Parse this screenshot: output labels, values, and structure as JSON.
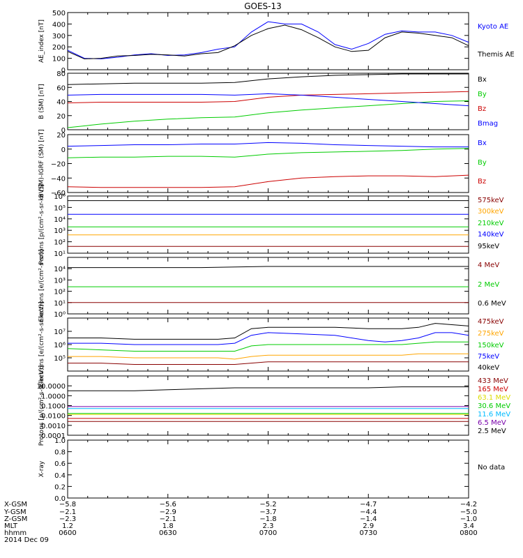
{
  "title": "GOES-13",
  "colors": {
    "black": "#000000",
    "blue": "#0000ff",
    "green": "#00cc00",
    "red": "#cc0000",
    "orange": "#ffa500",
    "purple": "#7700aa",
    "cyan": "#00bbff",
    "yellow": "#dddd00",
    "darkred": "#880000"
  },
  "chart_data": [
    {
      "type": "line",
      "name": "ae",
      "ylabel": "AE_index [nT]",
      "ylim": [
        0,
        500
      ],
      "ticks": [
        {
          "v": 0,
          "label": "0"
        },
        {
          "v": 100,
          "label": "100"
        },
        {
          "v": 200,
          "label": "200"
        },
        {
          "v": 300,
          "label": "300"
        },
        {
          "v": 400,
          "label": "400"
        },
        {
          "v": 500,
          "label": "500"
        }
      ],
      "x": [
        0,
        5,
        10,
        15,
        20,
        25,
        30,
        35,
        40,
        45,
        50,
        55,
        60,
        65,
        70,
        75,
        80,
        85,
        90,
        95,
        100,
        105,
        110,
        115,
        120
      ],
      "series": [
        {
          "name": "Kyoto AE",
          "color": "#0000ff",
          "values": [
            170,
            100,
            95,
            110,
            130,
            140,
            125,
            130,
            150,
            180,
            200,
            330,
            420,
            400,
            400,
            330,
            220,
            180,
            230,
            310,
            340,
            330,
            330,
            300,
            240
          ]
        },
        {
          "name": "Themis AE",
          "color": "#000000",
          "values": [
            160,
            95,
            100,
            120,
            125,
            135,
            130,
            120,
            140,
            150,
            210,
            300,
            360,
            390,
            350,
            280,
            200,
            160,
            170,
            280,
            330,
            320,
            300,
            280,
            210
          ]
        }
      ],
      "legend": [
        "Kyoto AE",
        "Themis AE"
      ]
    },
    {
      "type": "line",
      "name": "bsm",
      "ylabel": "B (SM) [nT]",
      "ylim": [
        0,
        80
      ],
      "ticks": [
        {
          "v": 0,
          "label": "0"
        },
        {
          "v": 20,
          "label": "20"
        },
        {
          "v": 40,
          "label": "40"
        },
        {
          "v": 60,
          "label": "60"
        },
        {
          "v": 80,
          "label": "80"
        }
      ],
      "x": [
        0,
        10,
        20,
        30,
        40,
        50,
        60,
        70,
        80,
        90,
        100,
        110,
        120
      ],
      "series": [
        {
          "name": "Bx",
          "color": "#000000",
          "values": [
            64,
            65,
            66,
            66,
            66,
            67,
            72,
            75,
            77,
            78,
            79,
            79,
            79
          ]
        },
        {
          "name": "By",
          "color": "#00cc00",
          "values": [
            3,
            8,
            12,
            15,
            17,
            18,
            24,
            28,
            31,
            34,
            37,
            40,
            41
          ]
        },
        {
          "name": "Bz",
          "color": "#cc0000",
          "values": [
            38,
            39,
            39,
            39,
            39,
            40,
            46,
            49,
            50,
            51,
            52,
            53,
            54
          ]
        },
        {
          "name": "Bmag",
          "color": "#0000ff",
          "values": [
            49,
            50,
            50,
            50,
            50,
            49,
            51,
            49,
            46,
            43,
            40,
            37,
            34
          ]
        }
      ],
      "legend": [
        "Bx",
        "By",
        "Bz",
        "Bmag"
      ]
    },
    {
      "type": "line",
      "name": "bigrf",
      "ylabel": "B (SM)-IGRF (SM) [nT]",
      "ylim": [
        -60,
        20
      ],
      "ticks": [
        {
          "v": -60,
          "label": "−60"
        },
        {
          "v": -40,
          "label": "−40"
        },
        {
          "v": -20,
          "label": "−20"
        },
        {
          "v": 0,
          "label": "0"
        },
        {
          "v": 20,
          "label": "20"
        }
      ],
      "x": [
        0,
        10,
        20,
        30,
        40,
        50,
        60,
        70,
        80,
        90,
        100,
        110,
        120
      ],
      "series": [
        {
          "name": "Bx",
          "color": "#0000ff",
          "values": [
            4,
            5,
            6,
            6,
            7,
            7,
            9,
            8,
            6,
            5,
            4,
            3,
            3
          ]
        },
        {
          "name": "By",
          "color": "#00cc00",
          "values": [
            -12,
            -11,
            -11,
            -10,
            -10,
            -11,
            -7,
            -5,
            -4,
            -3,
            -2,
            0,
            1
          ]
        },
        {
          "name": "Bz",
          "color": "#cc0000",
          "values": [
            -52,
            -53,
            -53,
            -53,
            -53,
            -52,
            -45,
            -40,
            -38,
            -37,
            -37,
            -38,
            -36
          ]
        }
      ],
      "legend": [
        "Bx",
        "By",
        "Bz"
      ]
    },
    {
      "type": "line",
      "name": "protons",
      "ylabel": "Protons [p/(cm²-s-sr-keV)]",
      "ylim": [
        1,
        6
      ],
      "log": true,
      "ticks": [
        {
          "v": 1,
          "label": "10¹"
        },
        {
          "v": 2,
          "label": "10²"
        },
        {
          "v": 3,
          "label": "10³"
        },
        {
          "v": 4,
          "label": "10⁴"
        },
        {
          "v": 5,
          "label": "10⁵"
        },
        {
          "v": 6,
          "label": "10⁶"
        }
      ],
      "x": [
        0,
        20,
        40,
        60,
        80,
        100,
        120
      ],
      "series": [
        {
          "name": "575keV",
          "color": "#880000",
          "values": [
            1.6,
            1.6,
            1.6,
            1.6,
            1.6,
            1.6,
            1.6
          ]
        },
        {
          "name": "300keV",
          "color": "#ffa500",
          "values": [
            2.6,
            2.6,
            2.6,
            2.6,
            2.6,
            2.6,
            2.6
          ]
        },
        {
          "name": "210keV",
          "color": "#00cc00",
          "values": [
            3.3,
            3.3,
            3.3,
            3.3,
            3.3,
            3.3,
            3.3
          ]
        },
        {
          "name": "140keV",
          "color": "#0000ff",
          "values": [
            4.4,
            4.4,
            4.4,
            4.4,
            4.4,
            4.4,
            4.4
          ]
        },
        {
          "name": "95keV",
          "color": "#000000",
          "values": [
            5.6,
            5.6,
            5.6,
            5.6,
            5.6,
            5.6,
            5.6
          ]
        }
      ],
      "legend": [
        "575keV",
        "300keV",
        "210keV",
        "140keV",
        "95keV"
      ]
    },
    {
      "type": "line",
      "name": "electrons_mev",
      "ylabel": "Electrons [e/(cm²-s-sr)]",
      "ylim": [
        0,
        5
      ],
      "log": true,
      "ticks": [
        {
          "v": 0,
          "label": "10⁰"
        },
        {
          "v": 1,
          "label": "10¹"
        },
        {
          "v": 2,
          "label": "10²"
        },
        {
          "v": 3,
          "label": "10³"
        },
        {
          "v": 4,
          "label": "10⁴"
        }
      ],
      "x": [
        0,
        20,
        40,
        60,
        80,
        100,
        120
      ],
      "series": [
        {
          "name": "4 MeV",
          "color": "#880000",
          "values": [
            1.0,
            1.0,
            1.0,
            1.0,
            1.0,
            1.0,
            1.0
          ]
        },
        {
          "name": "2 MeV",
          "color": "#00cc00",
          "values": [
            2.4,
            2.4,
            2.4,
            2.4,
            2.4,
            2.4,
            2.4
          ]
        },
        {
          "name": "0.6 MeV",
          "color": "#000000",
          "values": [
            4.1,
            4.1,
            4.1,
            4.2,
            4.2,
            4.2,
            4.2
          ]
        }
      ],
      "legend": [
        "4 MeV",
        "2 MeV",
        "0.6 MeV"
      ]
    },
    {
      "type": "line",
      "name": "electrons_kev",
      "ylabel": "Electrons [e/(cm²-s-sr-keV)]",
      "ylim": [
        4,
        8
      ],
      "log": true,
      "ticks": [
        {
          "v": 5,
          "label": "10⁵"
        },
        {
          "v": 6,
          "label": "10⁶"
        },
        {
          "v": 7,
          "label": "10⁷"
        }
      ],
      "x": [
        0,
        10,
        20,
        30,
        40,
        45,
        50,
        55,
        60,
        70,
        80,
        90,
        95,
        100,
        105,
        110,
        115,
        120
      ],
      "series": [
        {
          "name": "475keV",
          "color": "#880000",
          "values": [
            4.6,
            4.6,
            4.5,
            4.5,
            4.5,
            4.5,
            4.5,
            4.6,
            4.7,
            4.7,
            4.7,
            4.7,
            4.7,
            4.7,
            4.7,
            4.7,
            4.7,
            4.7
          ]
        },
        {
          "name": "275keV",
          "color": "#ffa500",
          "values": [
            5.1,
            5.1,
            5.0,
            5.0,
            5.0,
            5.0,
            4.9,
            5.1,
            5.2,
            5.2,
            5.2,
            5.2,
            5.2,
            5.2,
            5.3,
            5.3,
            5.3,
            5.3
          ]
        },
        {
          "name": "150keV",
          "color": "#00cc00",
          "values": [
            5.7,
            5.6,
            5.5,
            5.5,
            5.5,
            5.5,
            5.5,
            5.9,
            6.0,
            6.0,
            6.0,
            6.0,
            6.0,
            6.0,
            6.1,
            6.2,
            6.2,
            6.2
          ]
        },
        {
          "name": "75keV",
          "color": "#0000ff",
          "values": [
            6.1,
            6.1,
            6.0,
            6.0,
            6.0,
            6.0,
            6.1,
            6.7,
            6.9,
            6.8,
            6.7,
            6.3,
            6.2,
            6.3,
            6.5,
            6.9,
            6.9,
            6.7
          ]
        },
        {
          "name": "40keV",
          "color": "#000000",
          "values": [
            6.5,
            6.5,
            6.4,
            6.4,
            6.4,
            6.4,
            6.5,
            7.2,
            7.3,
            7.3,
            7.3,
            7.2,
            7.2,
            7.2,
            7.3,
            7.6,
            7.5,
            7.4
          ]
        }
      ],
      "legend": [
        "475keV",
        "275keV",
        "150keV",
        "75keV",
        "40keV"
      ]
    },
    {
      "type": "line",
      "name": "protons_mev",
      "ylabel": "Protons [p/(cm²-s-sr-keV)]",
      "ylim": [
        -4,
        2
      ],
      "log": true,
      "ticks": [
        {
          "v": -4,
          "label": "0.0001"
        },
        {
          "v": -3,
          "label": "0.0010"
        },
        {
          "v": -2,
          "label": "0.0100"
        },
        {
          "v": -1,
          "label": "0.1000"
        },
        {
          "v": 0,
          "label": "1.0000"
        },
        {
          "v": 1,
          "label": "10.0000"
        }
      ],
      "x": [
        0,
        10,
        20,
        30,
        40,
        50,
        60,
        70,
        80,
        90,
        100,
        110,
        120
      ],
      "series": [
        {
          "name": "433 MeV",
          "color": "#880000",
          "values": [
            -2.6,
            -2.6,
            -2.6,
            -2.6,
            -2.6,
            -2.6,
            -2.6,
            -2.6,
            -2.6,
            -2.6,
            -2.6,
            -2.6,
            -2.6
          ]
        },
        {
          "name": "165 MeV",
          "color": "#cc0000",
          "values": [
            -2.3,
            -2.3,
            -2.3,
            -2.3,
            -2.3,
            -2.3,
            -2.3,
            -2.3,
            -2.3,
            -2.3,
            -2.3,
            -2.3,
            -2.3
          ]
        },
        {
          "name": "63.1 MeV",
          "color": "#dddd00",
          "values": [
            -1.9,
            -1.9,
            -1.9,
            -1.9,
            -1.9,
            -1.9,
            -1.9,
            -1.9,
            -1.9,
            -1.9,
            -1.9,
            -1.9,
            -1.9
          ]
        },
        {
          "name": "30.6 MeV",
          "color": "#00cc00",
          "values": [
            -1.8,
            -1.8,
            -1.8,
            -1.8,
            -1.8,
            -1.8,
            -1.8,
            -1.8,
            -1.8,
            -1.8,
            -1.8,
            -1.8,
            -1.8
          ]
        },
        {
          "name": "11.6 MeV",
          "color": "#00bbff",
          "values": [
            -1.3,
            -1.3,
            -1.3,
            -1.3,
            -1.3,
            -1.3,
            -1.3,
            -1.3,
            -1.3,
            -1.3,
            -1.3,
            -1.3,
            -1.3
          ]
        },
        {
          "name": "6.5 MeV",
          "color": "#7700aa",
          "values": [
            -1.1,
            -1.1,
            -1.1,
            -1.1,
            -1.1,
            -1.1,
            -1.1,
            -1.1,
            -1.1,
            -1.1,
            -1.1,
            -1.1,
            -1.1
          ]
        },
        {
          "name": "2.5 MeV",
          "color": "#000000",
          "values": [
            0.5,
            0.5,
            0.5,
            0.6,
            0.7,
            0.8,
            0.8,
            0.8,
            0.8,
            0.8,
            0.9,
            0.9,
            0.9
          ]
        }
      ],
      "legend": [
        "433 MeV",
        "165 MeV",
        "63.1 MeV",
        "30.6 MeV",
        "11.6 MeV",
        "6.5 MeV",
        "2.5 MeV"
      ]
    },
    {
      "type": "line",
      "name": "xray",
      "ylabel": "X-ray",
      "ylim": [
        0,
        1
      ],
      "ticks": [
        {
          "v": 0,
          "label": "0.0"
        },
        {
          "v": 0.2,
          "label": "0.2"
        },
        {
          "v": 0.4,
          "label": "0.4"
        },
        {
          "v": 0.6,
          "label": "0.6"
        },
        {
          "v": 0.8,
          "label": "0.8"
        },
        {
          "v": 1,
          "label": "1.0"
        }
      ],
      "x": [],
      "series": [],
      "legend": [],
      "note": "No data"
    }
  ],
  "footer": {
    "row_labels": [
      "X-GSM",
      "Y-GSM",
      "Z-GSM",
      "MLT",
      "hhmm",
      "2014 Dec 09"
    ],
    "columns": [
      {
        "x": 0,
        "values": [
          "−5.8",
          "−2.1",
          "−2.3",
          "1.2",
          "0600"
        ]
      },
      {
        "x": 30,
        "values": [
          "−5.6",
          "−2.9",
          "−2.1",
          "1.8",
          "0630"
        ]
      },
      {
        "x": 60,
        "values": [
          "−5.2",
          "−3.7",
          "−1.8",
          "2.3",
          "0700"
        ]
      },
      {
        "x": 90,
        "values": [
          "−4.7",
          "−4.4",
          "−1.4",
          "2.9",
          "0730"
        ]
      },
      {
        "x": 120,
        "values": [
          "−4.2",
          "−5.0",
          "−1.0",
          "3.4",
          "0800"
        ]
      }
    ]
  }
}
